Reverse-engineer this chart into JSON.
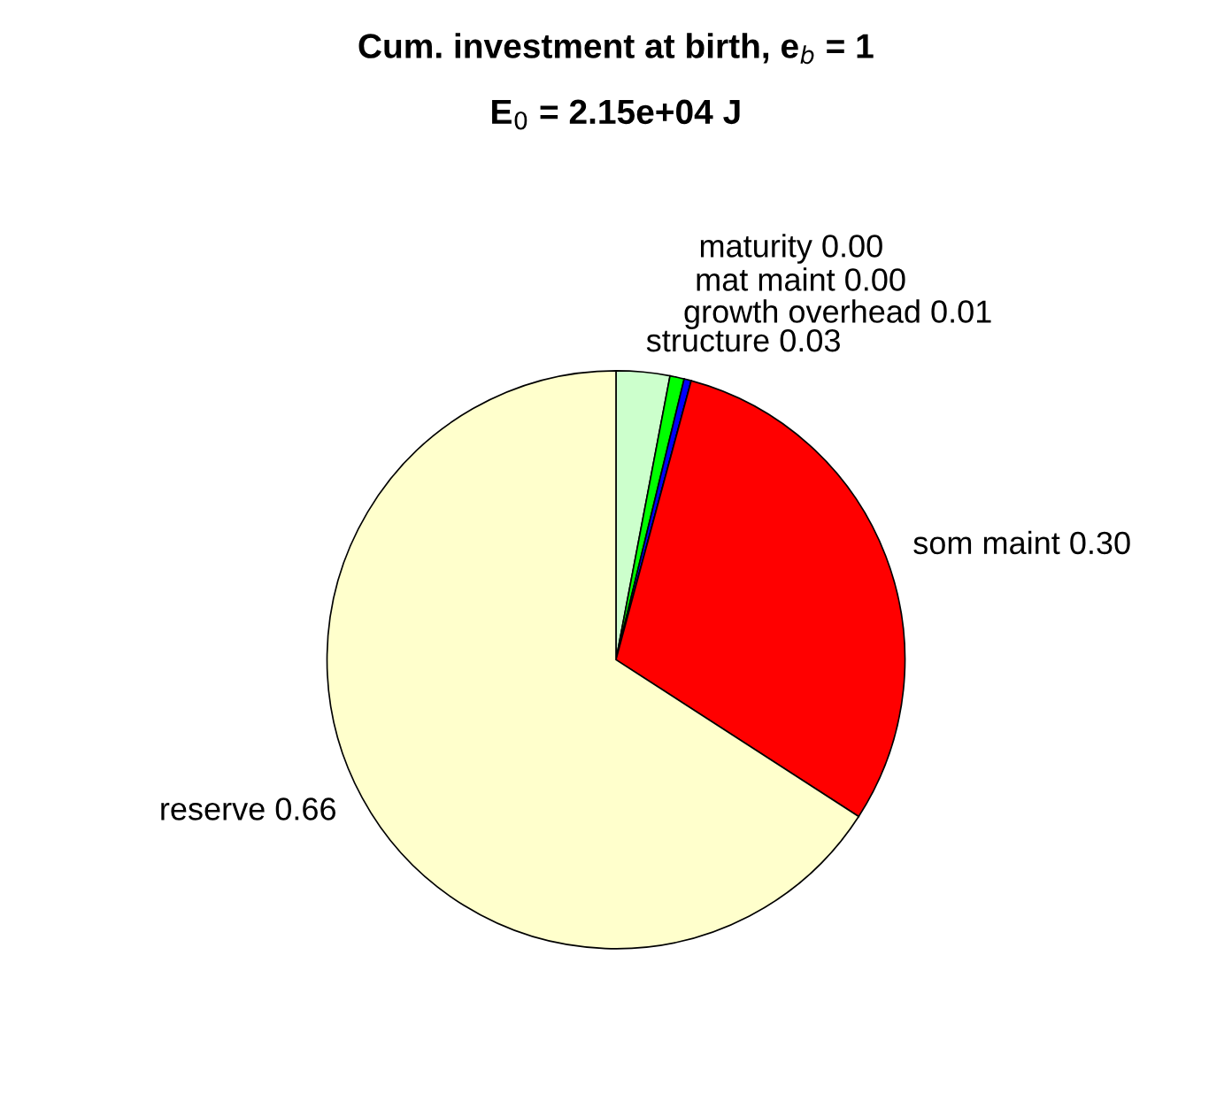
{
  "chart_data": {
    "type": "pie",
    "title": "Cum. investment at birth, e$_{b}$ = 1",
    "subtitle": "E$_{0}$ = 2.15e+04 J",
    "categories": [
      "structure",
      "growth overhead",
      "mat maint",
      "maturity",
      "som maint",
      "reserve"
    ],
    "values": [
      0.03,
      0.008,
      0.004,
      0.0,
      0.3,
      0.66
    ],
    "value_labels": [
      "0.03",
      "0.01",
      "0.00",
      "0.00",
      "0.30",
      "0.66"
    ],
    "colors": [
      "#ccffcc",
      "#00ff00",
      "#0000ff",
      "#ff00ff",
      "#ff0000",
      "#ffffcc"
    ],
    "legend": false
  }
}
